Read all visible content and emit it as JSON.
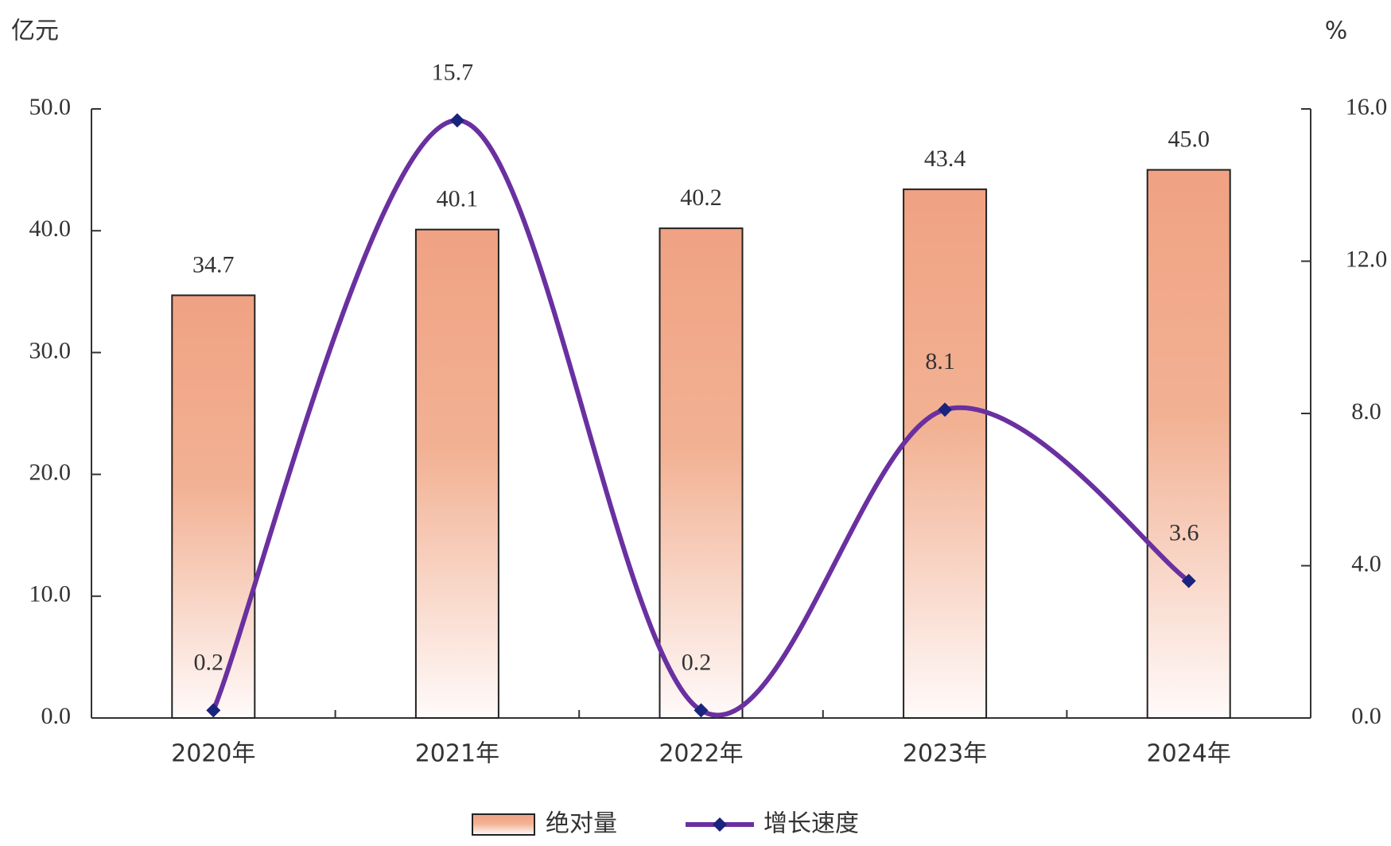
{
  "chart_data": {
    "type": "bar-line",
    "y_unit": "亿元",
    "y2_unit": "%",
    "categories": [
      "2020年",
      "2021年",
      "2022年",
      "2023年",
      "2024年"
    ],
    "series": [
      {
        "name": "绝对量",
        "type": "bar",
        "color": "#f0a283",
        "values": [
          34.7,
          40.1,
          40.2,
          43.4,
          45.0
        ],
        "value_labels": [
          "34.7",
          "40.1",
          "40.2",
          "43.4",
          "45.0"
        ]
      },
      {
        "name": "增长速度",
        "type": "line",
        "axis": "y2",
        "color": "#6a30a0",
        "marker_color": "#1a237e",
        "values": [
          0.2,
          15.7,
          0.2,
          8.1,
          3.6
        ]
      }
    ],
    "ylim": [
      0,
      50
    ],
    "yticks": [
      {
        "value": 0,
        "label": "0.0"
      },
      {
        "value": 10,
        "label": "10.0"
      },
      {
        "value": 20,
        "label": "20.0"
      },
      {
        "value": 30,
        "label": "30.0"
      },
      {
        "value": 40,
        "label": "40.0"
      },
      {
        "value": 50,
        "label": "50.0"
      }
    ],
    "y2lim": [
      0,
      16
    ],
    "y2ticks": [
      {
        "value": 0,
        "label": "0.0"
      },
      {
        "value": 4,
        "label": "4.0"
      },
      {
        "value": 8,
        "label": "8.0"
      },
      {
        "value": 12,
        "label": "12.0"
      },
      {
        "value": 16,
        "label": "16.0"
      }
    ],
    "legend": "bottom"
  }
}
